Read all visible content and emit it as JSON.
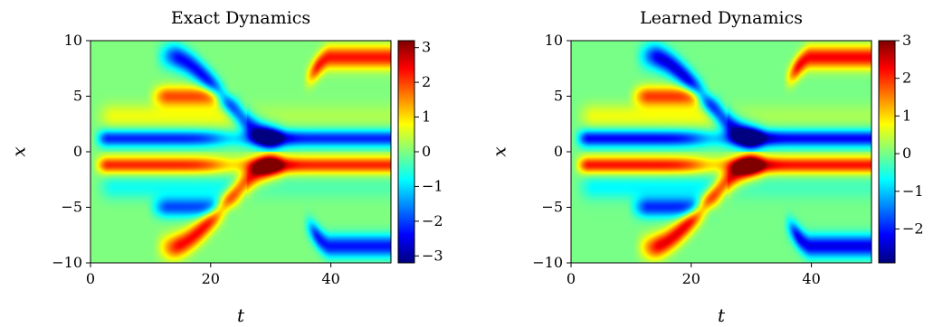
{
  "chart_data": [
    {
      "type": "heatmap",
      "title": "Exact Dynamics",
      "xlabel": "t",
      "ylabel": "x",
      "xlim": [
        0,
        50
      ],
      "ylim": [
        -10,
        10
      ],
      "x_ticks": [
        0,
        20,
        40
      ],
      "x_tick_labels": [
        "0",
        "20",
        "40"
      ],
      "y_ticks": [
        10,
        5,
        0,
        -5,
        -10
      ],
      "y_tick_labels": [
        "10",
        "5",
        "0",
        "−5",
        "−10"
      ],
      "colorscale": "jet",
      "clim": [
        -3.2,
        3.2
      ],
      "colorbar_ticks": [
        3,
        2,
        1,
        0,
        -1,
        -2,
        -3
      ],
      "colorbar_tick_labels": [
        "3",
        "2",
        "1",
        "0",
        "−1",
        "−2",
        "−3"
      ],
      "grid": false
    },
    {
      "type": "heatmap",
      "title": "Learned Dynamics",
      "xlabel": "t",
      "ylabel": "x",
      "xlim": [
        0,
        50
      ],
      "ylim": [
        -10,
        10
      ],
      "x_ticks": [
        0,
        20,
        40
      ],
      "x_tick_labels": [
        "0",
        "20",
        "40"
      ],
      "y_ticks": [
        10,
        5,
        0,
        -5,
        -10
      ],
      "y_tick_labels": [
        "10",
        "5",
        "0",
        "−5",
        "−10"
      ],
      "colorscale": "jet",
      "clim": [
        -2.9,
        3.0
      ],
      "colorbar_ticks": [
        3,
        2,
        1,
        0,
        -1,
        -2
      ],
      "colorbar_tick_labels": [
        "3",
        "2",
        "1",
        "0",
        "−1",
        "−2"
      ],
      "grid": false
    }
  ]
}
